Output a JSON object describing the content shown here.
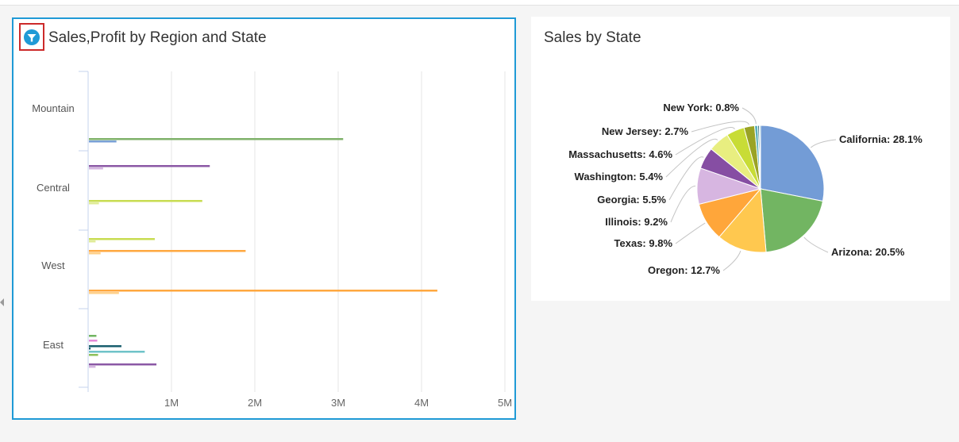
{
  "left_panel": {
    "title": "Sales,Profit by Region and State"
  },
  "right_panel": {
    "title": "Sales by State"
  },
  "chart_data": [
    {
      "type": "bar",
      "orientation": "horizontal",
      "title": "Sales,Profit by Region and State",
      "categories": [
        "Mountain",
        "Central",
        "West",
        "East"
      ],
      "x_tick_labels": [
        "1M",
        "2M",
        "3M",
        "4M",
        "5M"
      ],
      "xlim": [
        0,
        5000000
      ],
      "grid": true,
      "bars": [
        {
          "category": "Mountain",
          "color": "#7fb26a",
          "sales": 3050000,
          "profit": 330000,
          "profit_color": "#7aa1d6"
        },
        {
          "category": "Central",
          "color": "#8b58a5",
          "sales": 1450000,
          "profit": 170000,
          "profit_color": "#d4b6e0"
        },
        {
          "category": "Central",
          "color": "#c8dc52",
          "sales": 1360000,
          "profit": 120000,
          "profit_color": "#e0ec98"
        },
        {
          "category": "West",
          "color": "#c8dc52",
          "sales": 790000,
          "profit": 80000,
          "profit_color": "#e0ec98"
        },
        {
          "category": "West",
          "color": "#ffa840",
          "sales": 1880000,
          "profit": 140000,
          "profit_color": "#ffd08a"
        },
        {
          "category": "West",
          "color": "#ffa840",
          "sales": 4180000,
          "profit": 360000,
          "profit_color": "#ffd08a"
        },
        {
          "category": "East",
          "color": "#72b562",
          "sales": 90000,
          "profit": 0,
          "profit_color": "#72b562"
        },
        {
          "category": "East",
          "color": "#e58ad8",
          "sales": 100000,
          "profit": 0,
          "profit_color": "#e58ad8"
        },
        {
          "category": "East",
          "color": "#1a5f6e",
          "sales": 390000,
          "profit": 20000,
          "profit_color": "#1a5f6e"
        },
        {
          "category": "East",
          "color": "#6fc3c9",
          "sales": 670000,
          "profit": 0,
          "profit_color": "#6fc3c9"
        },
        {
          "category": "East",
          "color": "#8cc05a",
          "sales": 110000,
          "profit": 0,
          "profit_color": "#8cc05a"
        },
        {
          "category": "East",
          "color": "#8b58a5",
          "sales": 810000,
          "profit": 80000,
          "profit_color": "#d4b6e0"
        }
      ]
    },
    {
      "type": "pie",
      "title": "Sales by State",
      "slices": [
        {
          "label": "California",
          "value": 28.1,
          "color": "#739cd6"
        },
        {
          "label": "Arizona",
          "value": 20.5,
          "color": "#72b562"
        },
        {
          "label": "Oregon",
          "value": 12.7,
          "color": "#ffc84f"
        },
        {
          "label": "Texas",
          "value": 9.8,
          "color": "#ffa63a"
        },
        {
          "label": "Illinois",
          "value": 9.2,
          "color": "#d7b6e1"
        },
        {
          "label": "Georgia",
          "value": 5.5,
          "color": "#864ea3"
        },
        {
          "label": "Washington",
          "value": 5.4,
          "color": "#e8ee80"
        },
        {
          "label": "Massachusetts",
          "value": 4.6,
          "color": "#c8dc36"
        },
        {
          "label": "New Jersey",
          "value": 2.7,
          "color": "#9aa325"
        },
        {
          "label": "New York",
          "value": 0.8,
          "color": "#5bb0ba"
        }
      ],
      "residual_slices": [
        {
          "value": 0.4,
          "color": "#2a6b7b"
        },
        {
          "value": 0.3,
          "color": "#8fc9ce"
        }
      ]
    }
  ]
}
